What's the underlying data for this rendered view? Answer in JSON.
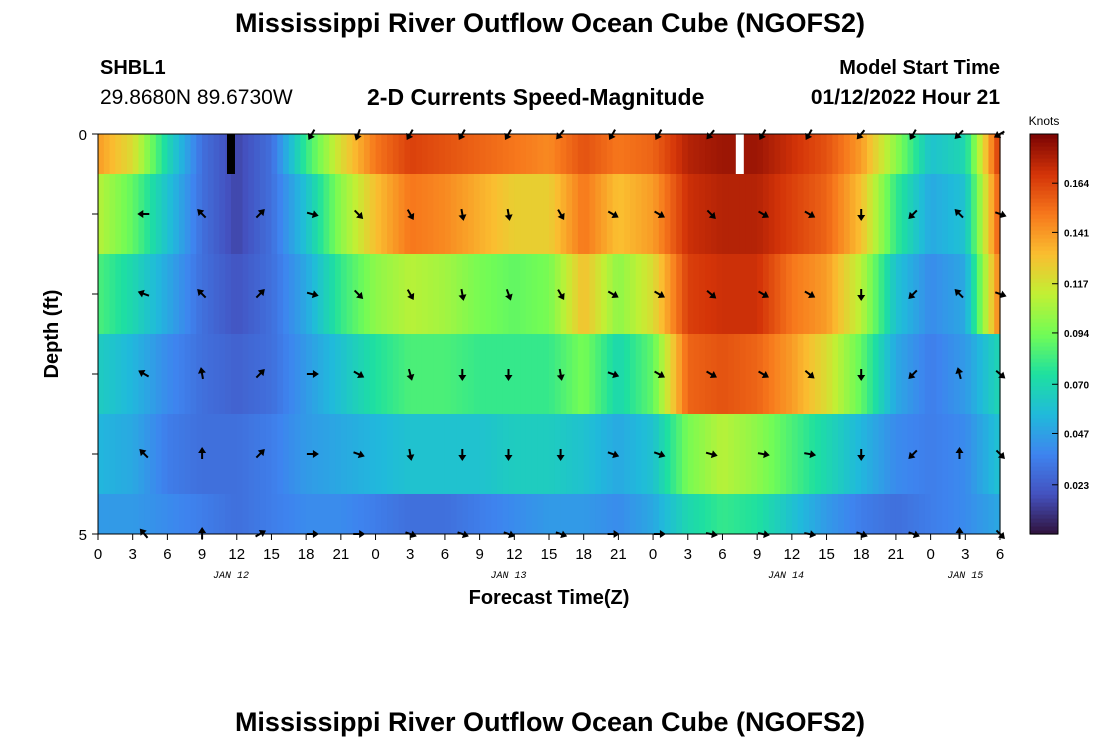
{
  "header": {
    "title": "Mississippi River Outflow Ocean Cube (NGOFS2)",
    "station": "SHBL1",
    "coords": "29.8680N  89.6730W",
    "plot_title": "2-D Currents Speed-Magnitude",
    "model_start_label": "Model Start Time",
    "model_start_value": "01/12/2022 Hour 21"
  },
  "footer": {
    "title": "Mississippi River Outflow Ocean Cube (NGOFS2)"
  },
  "chart_data": {
    "type": "heatmap",
    "title": "2-D Currents Speed-Magnitude",
    "xlabel": "Forecast Time(Z)",
    "ylabel": "Depth (ft)",
    "x_range_hours": [
      0,
      78
    ],
    "y_range": [
      0,
      5
    ],
    "y_ticks_labeled": [
      "0",
      "5"
    ],
    "x_tick_labels": [
      "0",
      "3",
      "6",
      "9",
      "12",
      "15",
      "18",
      "21",
      "0",
      "3",
      "6",
      "9",
      "12",
      "15",
      "18",
      "21",
      "0",
      "3",
      "6",
      "9",
      "12",
      "15",
      "18",
      "21",
      "0",
      "3",
      "6"
    ],
    "date_labels": [
      {
        "text": "JAN 12",
        "hour": 11.5
      },
      {
        "text": "JAN 13",
        "hour": 35.5
      },
      {
        "text": "JAN 14",
        "hour": 59.5
      },
      {
        "text": "JAN 15",
        "hour": 75
      }
    ],
    "colorbar": {
      "unit": "Knots",
      "tick_values": [
        0.023,
        0.047,
        0.07,
        0.094,
        0.117,
        0.141,
        0.164
      ],
      "tick_labels": [
        "0.023",
        "0.047",
        "0.070",
        "0.094",
        "0.117",
        "0.141",
        "0.164"
      ],
      "range": [
        0.0,
        0.187
      ]
    },
    "depth_bins": [
      0,
      0.5,
      1.5,
      2.5,
      3.5,
      4.5,
      5
    ],
    "keypoints_hours": [
      0,
      3,
      6,
      9,
      12,
      15,
      18,
      21,
      24,
      27,
      30,
      33,
      36,
      39,
      42,
      45,
      48,
      51,
      54,
      57,
      60,
      63,
      66,
      69,
      72,
      75,
      78
    ],
    "speed_rows": [
      [
        0.14,
        0.12,
        0.07,
        0.03,
        0.015,
        0.03,
        0.08,
        0.12,
        0.15,
        0.165,
        0.16,
        0.155,
        0.15,
        0.145,
        0.16,
        0.15,
        0.155,
        0.175,
        0.18,
        0.18,
        0.17,
        0.16,
        0.14,
        0.1,
        0.06,
        0.07,
        0.17
      ],
      [
        0.11,
        0.09,
        0.06,
        0.03,
        0.015,
        0.03,
        0.06,
        0.1,
        0.13,
        0.15,
        0.145,
        0.135,
        0.125,
        0.125,
        0.15,
        0.13,
        0.14,
        0.17,
        0.175,
        0.175,
        0.165,
        0.155,
        0.13,
        0.08,
        0.05,
        0.06,
        0.16
      ],
      [
        0.085,
        0.07,
        0.05,
        0.03,
        0.02,
        0.03,
        0.05,
        0.08,
        0.1,
        0.11,
        0.105,
        0.095,
        0.09,
        0.095,
        0.13,
        0.1,
        0.12,
        0.165,
        0.17,
        0.17,
        0.15,
        0.14,
        0.11,
        0.06,
        0.04,
        0.05,
        0.15
      ],
      [
        0.065,
        0.055,
        0.04,
        0.03,
        0.025,
        0.03,
        0.045,
        0.06,
        0.075,
        0.085,
        0.085,
        0.08,
        0.08,
        0.08,
        0.095,
        0.07,
        0.09,
        0.155,
        0.16,
        0.155,
        0.14,
        0.12,
        0.09,
        0.05,
        0.035,
        0.045,
        0.07
      ],
      [
        0.055,
        0.05,
        0.035,
        0.03,
        0.03,
        0.035,
        0.045,
        0.05,
        0.055,
        0.06,
        0.06,
        0.06,
        0.065,
        0.065,
        0.06,
        0.05,
        0.06,
        0.095,
        0.11,
        0.1,
        0.085,
        0.07,
        0.055,
        0.04,
        0.035,
        0.04,
        0.06
      ],
      [
        0.045,
        0.045,
        0.04,
        0.035,
        0.03,
        0.035,
        0.04,
        0.04,
        0.035,
        0.03,
        0.03,
        0.035,
        0.04,
        0.045,
        0.045,
        0.04,
        0.05,
        0.07,
        0.08,
        0.075,
        0.06,
        0.045,
        0.035,
        0.03,
        0.035,
        0.04,
        0.05
      ]
    ],
    "no_data_hours_surface": [
      11.5
    ],
    "max_marker_hours_surface": [
      55.5
    ],
    "vector_hours": [
      4,
      9,
      14,
      18.5,
      22.5,
      27,
      31.5,
      35.5,
      40,
      44.5,
      48.5,
      53,
      57.5,
      61.5,
      66,
      70.5,
      74.5,
      78
    ],
    "vector_rows_depth": [
      0,
      1,
      2,
      3,
      4,
      5
    ],
    "vector_angles_deg": [
      [
        null,
        null,
        null,
        120,
        110,
        120,
        120,
        120,
        130,
        120,
        120,
        130,
        120,
        120,
        130,
        120,
        135,
        150
      ],
      [
        180,
        225,
        315,
        15,
        45,
        60,
        80,
        80,
        60,
        30,
        30,
        45,
        30,
        30,
        90,
        135,
        225,
        20
      ],
      [
        200,
        225,
        315,
        15,
        45,
        60,
        80,
        70,
        60,
        30,
        30,
        40,
        30,
        30,
        90,
        135,
        225,
        20
      ],
      [
        210,
        260,
        315,
        0,
        30,
        75,
        90,
        90,
        80,
        20,
        30,
        30,
        30,
        40,
        90,
        135,
        255,
        40
      ],
      [
        225,
        270,
        315,
        0,
        20,
        80,
        90,
        90,
        90,
        20,
        20,
        15,
        10,
        10,
        90,
        135,
        270,
        45
      ],
      [
        230,
        270,
        330,
        0,
        0,
        20,
        20,
        20,
        20,
        0,
        0,
        10,
        10,
        10,
        20,
        20,
        270,
        45
      ]
    ]
  }
}
